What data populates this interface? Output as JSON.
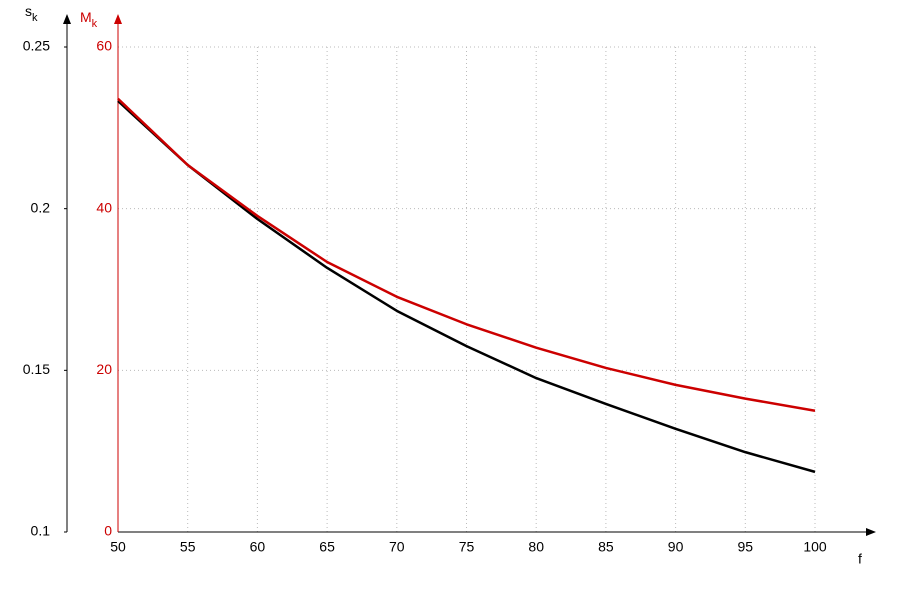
{
  "chart_data": {
    "type": "line",
    "x_label": "f",
    "y_label": {
      "main": "s",
      "sub": "k"
    },
    "y2_label": {
      "main": "M",
      "sub": "k"
    },
    "x": [
      50,
      55,
      60,
      65,
      70,
      75,
      80,
      85,
      90,
      95,
      100
    ],
    "series": [
      {
        "color": "#000000",
        "values": [
          0.2333,
          0.2135,
          0.1968,
          0.1817,
          0.1684,
          0.1575,
          0.1476,
          0.1396,
          0.1319,
          0.1247,
          0.1186
        ]
      },
      {
        "color": "#cc0000",
        "axis": "y2",
        "values": [
          53.6,
          45.4,
          39.1,
          33.4,
          29.1,
          25.7,
          22.8,
          20.3,
          18.2,
          16.5,
          15.0
        ]
      }
    ],
    "xlim": [
      50,
      100
    ],
    "xticks": [
      50,
      55,
      60,
      65,
      70,
      75,
      80,
      85,
      90,
      95,
      100
    ],
    "ylim": [
      0.1,
      0.25
    ],
    "yticks": [
      0.1,
      0.15,
      0.2,
      0.25
    ],
    "y2lim": [
      0,
      60
    ],
    "y2ticks": [
      0,
      20,
      40,
      60
    ],
    "y2_color": "#cc0000",
    "grid": true
  }
}
